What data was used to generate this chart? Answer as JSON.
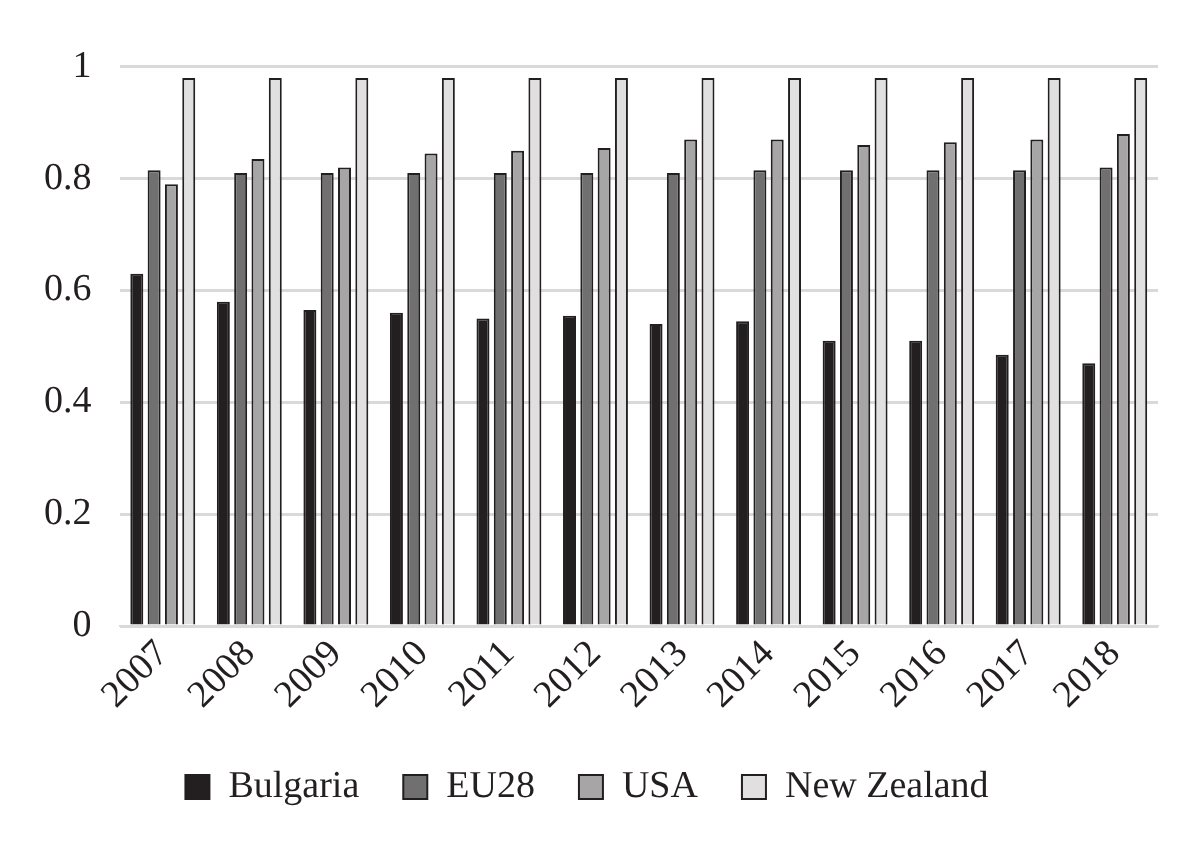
{
  "chart_data": {
    "type": "bar",
    "categories": [
      "2007",
      "2008",
      "2009",
      "2010",
      "2011",
      "2012",
      "2013",
      "2014",
      "2015",
      "2016",
      "2017",
      "2018"
    ],
    "series": [
      {
        "name": "Bulgaria",
        "color": "#231f20",
        "values": [
          0.63,
          0.58,
          0.565,
          0.56,
          0.55,
          0.555,
          0.54,
          0.545,
          0.51,
          0.51,
          0.485,
          0.47
        ]
      },
      {
        "name": "EU28",
        "color": "#707070",
        "values": [
          0.815,
          0.81,
          0.81,
          0.81,
          0.81,
          0.81,
          0.81,
          0.815,
          0.815,
          0.815,
          0.815,
          0.82
        ]
      },
      {
        "name": "USA",
        "color": "#a6a6a6",
        "values": [
          0.79,
          0.835,
          0.82,
          0.845,
          0.85,
          0.855,
          0.87,
          0.87,
          0.86,
          0.865,
          0.87,
          0.88
        ]
      },
      {
        "name": "New Zealand",
        "color": "#e0e0e0",
        "values": [
          0.98,
          0.98,
          0.98,
          0.98,
          0.98,
          0.98,
          0.98,
          0.98,
          0.98,
          0.98,
          0.98,
          0.98
        ]
      }
    ],
    "ylim": [
      0,
      1
    ],
    "yticks": [
      0,
      0.2,
      0.4,
      0.6,
      0.8,
      1
    ],
    "grid": "y",
    "legend": "bottom"
  }
}
